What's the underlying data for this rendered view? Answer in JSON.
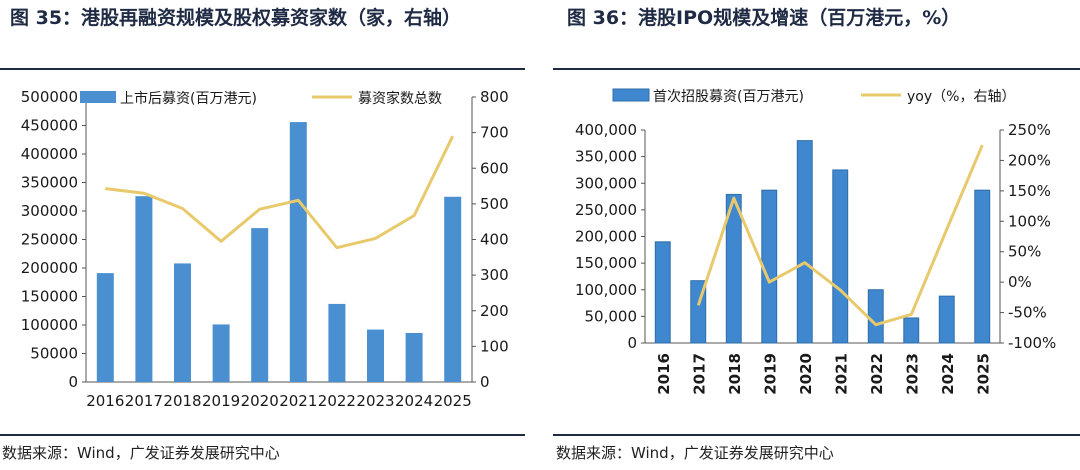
{
  "left": {
    "title": "图 35：港股再融资规模及股权募资家数（家，右轴）",
    "source": "数据来源：Wind，广发证券发展研究中心"
  },
  "right": {
    "title": "图 36：港股IPO规模及增速（百万港元，%）",
    "source": "数据来源：Wind，广发证券发展研究中心"
  },
  "chart_data": [
    {
      "type": "bar",
      "categories": [
        "2016",
        "2017",
        "2018",
        "2019",
        "2020",
        "2021",
        "2022",
        "2023",
        "2024",
        "2025"
      ],
      "series": [
        {
          "name": "上市后募资(百万港元)",
          "kind": "bar",
          "axis": "left",
          "color": "#4a8fd0",
          "values": [
            191000,
            326000,
            208000,
            101000,
            270000,
            456000,
            137000,
            92000,
            86000,
            325000
          ]
        },
        {
          "name": "募资家数总数",
          "kind": "line",
          "axis": "right",
          "color": "#e8c96c",
          "values": [
            543,
            530,
            487,
            395,
            485,
            510,
            377,
            403,
            467,
            690
          ]
        }
      ],
      "y_left": {
        "min": 0,
        "max": 500000,
        "ticks": [
          "0",
          "50000",
          "100000",
          "150000",
          "200000",
          "250000",
          "300000",
          "350000",
          "400000",
          "450000",
          "500000"
        ]
      },
      "y_right": {
        "min": 0,
        "max": 800,
        "ticks": [
          "0",
          "100",
          "200",
          "300",
          "400",
          "500",
          "600",
          "700",
          "800"
        ]
      },
      "legend": "top",
      "grid": false
    },
    {
      "type": "bar",
      "categories": [
        "2016",
        "2017",
        "2018",
        "2019",
        "2020",
        "2021",
        "2022",
        "2023",
        "2024",
        "2025"
      ],
      "series": [
        {
          "name": "首次招股募资(百万港元)",
          "kind": "bar",
          "axis": "left",
          "color": "#3f87cf",
          "values": [
            190000,
            117000,
            279000,
            287000,
            380000,
            325000,
            100000,
            47000,
            88000,
            287000
          ]
        },
        {
          "name": "yoy（%，右轴）",
          "kind": "line",
          "axis": "right",
          "color": "#e8c96c",
          "values": [
            null,
            -38,
            138,
            0,
            32,
            -13,
            -70,
            -53,
            87,
            225
          ]
        }
      ],
      "y_left": {
        "min": 0,
        "max": 400000,
        "ticks": [
          "0",
          "50,000",
          "100,000",
          "150,000",
          "200,000",
          "250,000",
          "300,000",
          "350,000",
          "400,000"
        ]
      },
      "y_right": {
        "min": -100,
        "max": 250,
        "ticks": [
          "-100%",
          "-50%",
          "0%",
          "50%",
          "100%",
          "150%",
          "200%",
          "250%"
        ]
      },
      "legend": "top",
      "grid": false
    }
  ]
}
